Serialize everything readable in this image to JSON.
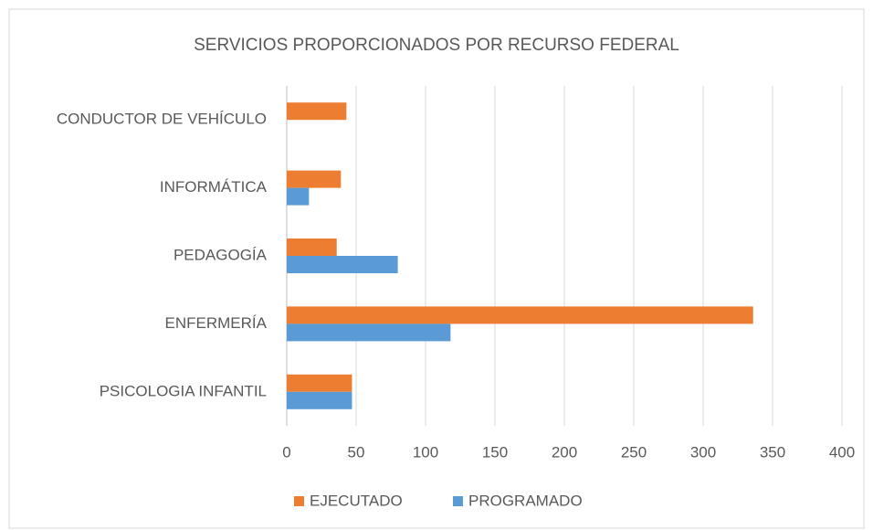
{
  "chart_data": {
    "type": "hbar",
    "title": "SERVICIOS PROPORCIONADOS POR RECURSO FEDERAL",
    "categories": [
      "CONDUCTOR DE VEHÍCULO",
      "INFORMÁTICA",
      "PEDAGOGÍA",
      "ENFERMERÍA",
      "PSICOLOGIA INFANTIL"
    ],
    "series": [
      {
        "name": "EJECUTADO",
        "color": "#ed7d31",
        "values": [
          43,
          39,
          36,
          336,
          47
        ]
      },
      {
        "name": "PROGRAMADO",
        "color": "#5b9bd5",
        "values": [
          null,
          16,
          80,
          118,
          47
        ]
      }
    ],
    "xlim": [
      0,
      400
    ],
    "xticks": [
      0,
      50,
      100,
      150,
      200,
      250,
      300,
      350,
      400
    ],
    "grid": true,
    "legend": "bottom"
  }
}
